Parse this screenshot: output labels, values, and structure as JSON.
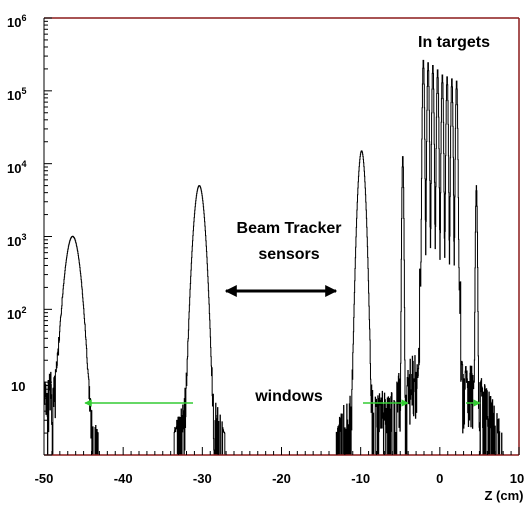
{
  "chart_data": {
    "type": "histogram",
    "title": "",
    "xlabel": "Z (cm)",
    "ylabel": "",
    "xlim": [
      -50,
      10
    ],
    "ylim": [
      1,
      1000000
    ],
    "y_scale": "log",
    "x_ticks": [
      "-50",
      "-40",
      "-30",
      "-20",
      "-10",
      "0",
      "10"
    ],
    "y_ticks": [
      {
        "base": "10",
        "exp": "6",
        "value": 1000000
      },
      {
        "base": "10",
        "exp": "5",
        "value": 100000
      },
      {
        "base": "10",
        "exp": "4",
        "value": 10000
      },
      {
        "base": "10",
        "exp": "3",
        "value": 1000
      },
      {
        "base": "10",
        "exp": "2",
        "value": 100
      },
      {
        "base": "10",
        "exp": "",
        "value": 10
      }
    ],
    "peaks": [
      {
        "z": -46.4,
        "height": 1000,
        "width": 0.65
      },
      {
        "z": -30.4,
        "height": 5000,
        "width": 0.45
      },
      {
        "z": -9.9,
        "height": 15000,
        "width": 0.3
      },
      {
        "z": -4.7,
        "height": 13000,
        "width": 0.07
      },
      {
        "z": -2.1,
        "height": 270000,
        "width": 0.08
      },
      {
        "z": -1.5,
        "height": 250000,
        "width": 0.08
      },
      {
        "z": -0.9,
        "height": 230000,
        "width": 0.08
      },
      {
        "z": -0.3,
        "height": 200000,
        "width": 0.08
      },
      {
        "z": 0.3,
        "height": 170000,
        "width": 0.08
      },
      {
        "z": 0.9,
        "height": 160000,
        "width": 0.08
      },
      {
        "z": 1.5,
        "height": 150000,
        "width": 0.08
      },
      {
        "z": 2.1,
        "height": 140000,
        "width": 0.08
      },
      {
        "z": 4.6,
        "height": 5000,
        "width": 0.07
      }
    ],
    "color": "#000000",
    "frame_color": "#8b1a1a",
    "grid": false
  },
  "annotations": {
    "in_targets": "In targets",
    "beam_tracker_line1": "Beam Tracker",
    "beam_tracker_line2": "sensors",
    "windows": "windows"
  },
  "colors": {
    "window_arrow": "#33cc33",
    "tracker_arrow": "#000000"
  }
}
